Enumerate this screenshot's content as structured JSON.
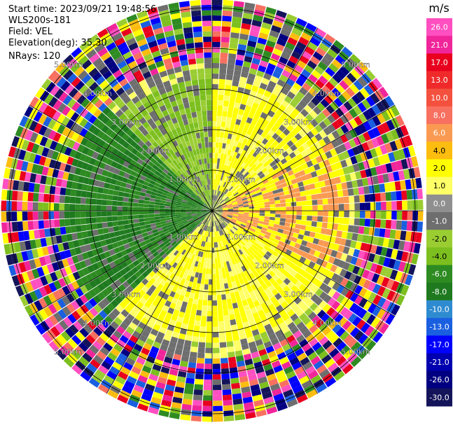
{
  "info": {
    "start_time": "Start time: 2023/09/21 19:48:56",
    "instrument": "WLS200s-181",
    "field": "Field: VEL",
    "elevation": "Elevation(deg): 35.30",
    "nrays": "NRays: 120"
  },
  "chart_data": {
    "type": "heatmap",
    "projection": "polar-ppi",
    "title": "",
    "field": "VEL",
    "nrays": 120,
    "elevation_deg": 35.3,
    "range_rings_km": [
      1.0,
      2.0,
      3.0,
      4.0,
      5.0
    ],
    "ring_labels": [
      "1.00km",
      "2.00km",
      "3.00km",
      "4.00km",
      "5.00km"
    ],
    "max_range_km": 5.2,
    "spokes_deg": [
      0,
      30,
      60,
      90,
      120,
      150,
      180,
      210,
      240,
      270,
      300,
      330
    ],
    "colorbar": {
      "unit": "m/s",
      "tick_labels": [
        "26.0",
        "21.0",
        "17.0",
        "13.0",
        "10.0",
        "8.0",
        "6.0",
        "4.0",
        "2.0",
        "1.0",
        "0.0",
        "-1.0",
        "-2.0",
        "-4.0",
        "-6.0",
        "-8.0",
        "-10.0",
        "-13.0",
        "-17.0",
        "-21.0",
        "-26.0",
        "-30.0"
      ],
      "colors": [
        "#ff4fc0",
        "#f0259a",
        "#e8001e",
        "#f02a2a",
        "#f4503e",
        "#f87060",
        "#fa9a52",
        "#fdbd10",
        "#ffff00",
        "#ffff66",
        "#8f8f8f",
        "#6e6e6e",
        "#9acd32",
        "#7cbf1e",
        "#2e8b22",
        "#1f7a1f",
        "#2e8bd0",
        "#1a5fe0",
        "#0000ff",
        "#0000b0",
        "#000080",
        "#14145a"
      ]
    },
    "sectors": [
      {
        "az_from": 225,
        "az_to": 315,
        "range_km": [
          0.0,
          3.6
        ],
        "velocity": -5.0
      },
      {
        "az_from": 315,
        "az_to": 360,
        "range_km": [
          0.0,
          3.2
        ],
        "velocity": -1.5
      },
      {
        "az_from": 0,
        "az_to": 60,
        "range_km": [
          0.5,
          3.2
        ],
        "velocity": 2.0
      },
      {
        "az_from": 60,
        "az_to": 120,
        "range_km": [
          0.3,
          3.4
        ],
        "velocity": 4.0
      },
      {
        "az_from": 120,
        "az_to": 225,
        "range_km": [
          0.5,
          3.3
        ],
        "velocity": 2.0
      },
      {
        "az_from": 0,
        "az_to": 360,
        "range_km": [
          3.6,
          5.2
        ],
        "velocity": "noise"
      }
    ]
  }
}
